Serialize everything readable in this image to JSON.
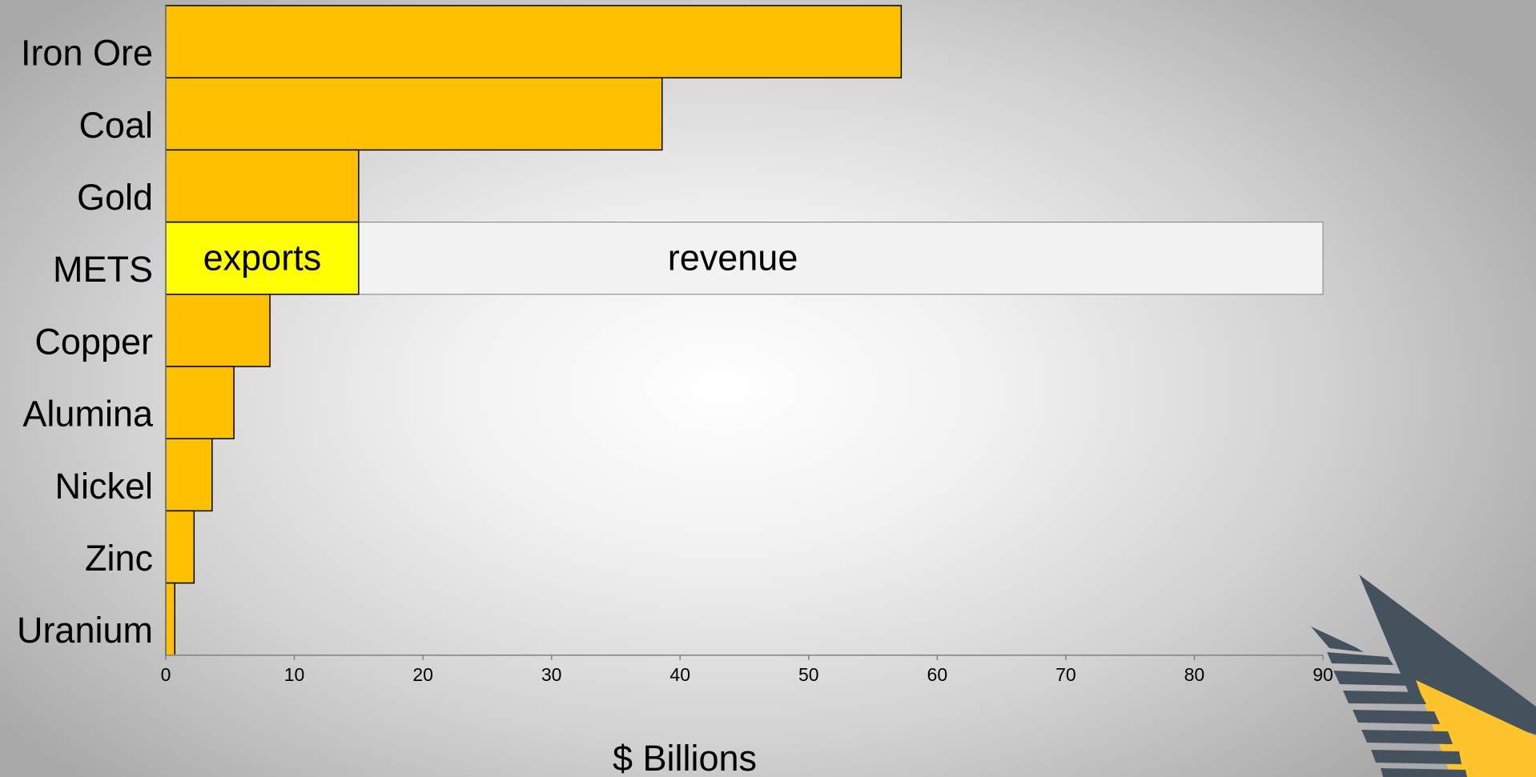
{
  "chart_data": {
    "type": "bar",
    "orientation": "horizontal",
    "categories": [
      "Iron Ore",
      "Coal",
      "Gold",
      "METS",
      "Copper",
      "Alumina",
      "Nickel",
      "Zinc",
      "Uranium"
    ],
    "series": [
      {
        "values": [
          57.2,
          38.6,
          15.0,
          15.0,
          8.1,
          5.3,
          3.6,
          2.2,
          0.7
        ]
      }
    ],
    "annotations": {
      "mets_revenue": {
        "value": 90,
        "label": "revenue"
      },
      "mets_exports": {
        "value": 15.0,
        "label": "exports"
      }
    },
    "xlabel": "$ Billions",
    "xlim": [
      0,
      90
    ],
    "xticks": [
      0,
      10,
      20,
      30,
      40,
      50,
      60,
      70,
      80,
      90
    ],
    "grid": false,
    "colors": {
      "bar": "#FFC000",
      "exports": "#FFFF00",
      "revenue": "#F2F2F2",
      "axis": "#808080",
      "logo_dark": "#44525E",
      "logo_gold": "#FFC32B"
    }
  }
}
